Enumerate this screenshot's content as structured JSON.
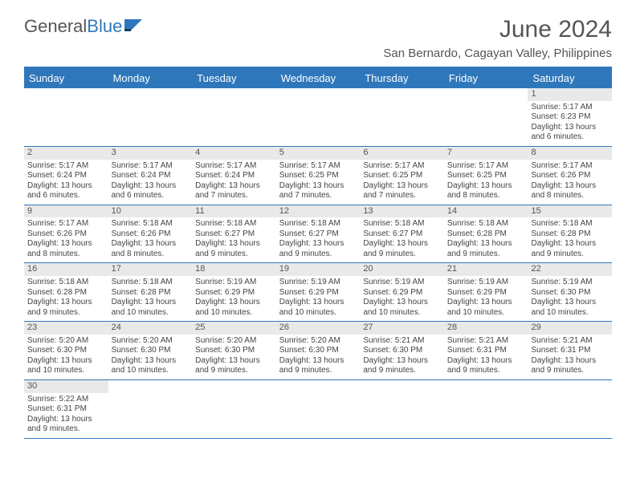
{
  "logo": {
    "text1": "General",
    "text2": "Blue"
  },
  "title": "June 2024",
  "location": "San Bernardo, Cagayan Valley, Philippines",
  "colors": {
    "header_bg": "#2f77bb",
    "header_text": "#ffffff",
    "daynum_bg": "#e9e9e9",
    "border": "#2f77bb",
    "body_text": "#444444"
  },
  "day_names": [
    "Sunday",
    "Monday",
    "Tuesday",
    "Wednesday",
    "Thursday",
    "Friday",
    "Saturday"
  ],
  "weeks": [
    [
      null,
      null,
      null,
      null,
      null,
      null,
      {
        "n": "1",
        "sr": "Sunrise: 5:17 AM",
        "ss": "Sunset: 6:23 PM",
        "d1": "Daylight: 13 hours",
        "d2": "and 6 minutes."
      }
    ],
    [
      {
        "n": "2",
        "sr": "Sunrise: 5:17 AM",
        "ss": "Sunset: 6:24 PM",
        "d1": "Daylight: 13 hours",
        "d2": "and 6 minutes."
      },
      {
        "n": "3",
        "sr": "Sunrise: 5:17 AM",
        "ss": "Sunset: 6:24 PM",
        "d1": "Daylight: 13 hours",
        "d2": "and 6 minutes."
      },
      {
        "n": "4",
        "sr": "Sunrise: 5:17 AM",
        "ss": "Sunset: 6:24 PM",
        "d1": "Daylight: 13 hours",
        "d2": "and 7 minutes."
      },
      {
        "n": "5",
        "sr": "Sunrise: 5:17 AM",
        "ss": "Sunset: 6:25 PM",
        "d1": "Daylight: 13 hours",
        "d2": "and 7 minutes."
      },
      {
        "n": "6",
        "sr": "Sunrise: 5:17 AM",
        "ss": "Sunset: 6:25 PM",
        "d1": "Daylight: 13 hours",
        "d2": "and 7 minutes."
      },
      {
        "n": "7",
        "sr": "Sunrise: 5:17 AM",
        "ss": "Sunset: 6:25 PM",
        "d1": "Daylight: 13 hours",
        "d2": "and 8 minutes."
      },
      {
        "n": "8",
        "sr": "Sunrise: 5:17 AM",
        "ss": "Sunset: 6:26 PM",
        "d1": "Daylight: 13 hours",
        "d2": "and 8 minutes."
      }
    ],
    [
      {
        "n": "9",
        "sr": "Sunrise: 5:17 AM",
        "ss": "Sunset: 6:26 PM",
        "d1": "Daylight: 13 hours",
        "d2": "and 8 minutes."
      },
      {
        "n": "10",
        "sr": "Sunrise: 5:18 AM",
        "ss": "Sunset: 6:26 PM",
        "d1": "Daylight: 13 hours",
        "d2": "and 8 minutes."
      },
      {
        "n": "11",
        "sr": "Sunrise: 5:18 AM",
        "ss": "Sunset: 6:27 PM",
        "d1": "Daylight: 13 hours",
        "d2": "and 9 minutes."
      },
      {
        "n": "12",
        "sr": "Sunrise: 5:18 AM",
        "ss": "Sunset: 6:27 PM",
        "d1": "Daylight: 13 hours",
        "d2": "and 9 minutes."
      },
      {
        "n": "13",
        "sr": "Sunrise: 5:18 AM",
        "ss": "Sunset: 6:27 PM",
        "d1": "Daylight: 13 hours",
        "d2": "and 9 minutes."
      },
      {
        "n": "14",
        "sr": "Sunrise: 5:18 AM",
        "ss": "Sunset: 6:28 PM",
        "d1": "Daylight: 13 hours",
        "d2": "and 9 minutes."
      },
      {
        "n": "15",
        "sr": "Sunrise: 5:18 AM",
        "ss": "Sunset: 6:28 PM",
        "d1": "Daylight: 13 hours",
        "d2": "and 9 minutes."
      }
    ],
    [
      {
        "n": "16",
        "sr": "Sunrise: 5:18 AM",
        "ss": "Sunset: 6:28 PM",
        "d1": "Daylight: 13 hours",
        "d2": "and 9 minutes."
      },
      {
        "n": "17",
        "sr": "Sunrise: 5:18 AM",
        "ss": "Sunset: 6:28 PM",
        "d1": "Daylight: 13 hours",
        "d2": "and 10 minutes."
      },
      {
        "n": "18",
        "sr": "Sunrise: 5:19 AM",
        "ss": "Sunset: 6:29 PM",
        "d1": "Daylight: 13 hours",
        "d2": "and 10 minutes."
      },
      {
        "n": "19",
        "sr": "Sunrise: 5:19 AM",
        "ss": "Sunset: 6:29 PM",
        "d1": "Daylight: 13 hours",
        "d2": "and 10 minutes."
      },
      {
        "n": "20",
        "sr": "Sunrise: 5:19 AM",
        "ss": "Sunset: 6:29 PM",
        "d1": "Daylight: 13 hours",
        "d2": "and 10 minutes."
      },
      {
        "n": "21",
        "sr": "Sunrise: 5:19 AM",
        "ss": "Sunset: 6:29 PM",
        "d1": "Daylight: 13 hours",
        "d2": "and 10 minutes."
      },
      {
        "n": "22",
        "sr": "Sunrise: 5:19 AM",
        "ss": "Sunset: 6:30 PM",
        "d1": "Daylight: 13 hours",
        "d2": "and 10 minutes."
      }
    ],
    [
      {
        "n": "23",
        "sr": "Sunrise: 5:20 AM",
        "ss": "Sunset: 6:30 PM",
        "d1": "Daylight: 13 hours",
        "d2": "and 10 minutes."
      },
      {
        "n": "24",
        "sr": "Sunrise: 5:20 AM",
        "ss": "Sunset: 6:30 PM",
        "d1": "Daylight: 13 hours",
        "d2": "and 10 minutes."
      },
      {
        "n": "25",
        "sr": "Sunrise: 5:20 AM",
        "ss": "Sunset: 6:30 PM",
        "d1": "Daylight: 13 hours",
        "d2": "and 9 minutes."
      },
      {
        "n": "26",
        "sr": "Sunrise: 5:20 AM",
        "ss": "Sunset: 6:30 PM",
        "d1": "Daylight: 13 hours",
        "d2": "and 9 minutes."
      },
      {
        "n": "27",
        "sr": "Sunrise: 5:21 AM",
        "ss": "Sunset: 6:30 PM",
        "d1": "Daylight: 13 hours",
        "d2": "and 9 minutes."
      },
      {
        "n": "28",
        "sr": "Sunrise: 5:21 AM",
        "ss": "Sunset: 6:31 PM",
        "d1": "Daylight: 13 hours",
        "d2": "and 9 minutes."
      },
      {
        "n": "29",
        "sr": "Sunrise: 5:21 AM",
        "ss": "Sunset: 6:31 PM",
        "d1": "Daylight: 13 hours",
        "d2": "and 9 minutes."
      }
    ],
    [
      {
        "n": "30",
        "sr": "Sunrise: 5:22 AM",
        "ss": "Sunset: 6:31 PM",
        "d1": "Daylight: 13 hours",
        "d2": "and 9 minutes."
      },
      null,
      null,
      null,
      null,
      null,
      null
    ]
  ]
}
